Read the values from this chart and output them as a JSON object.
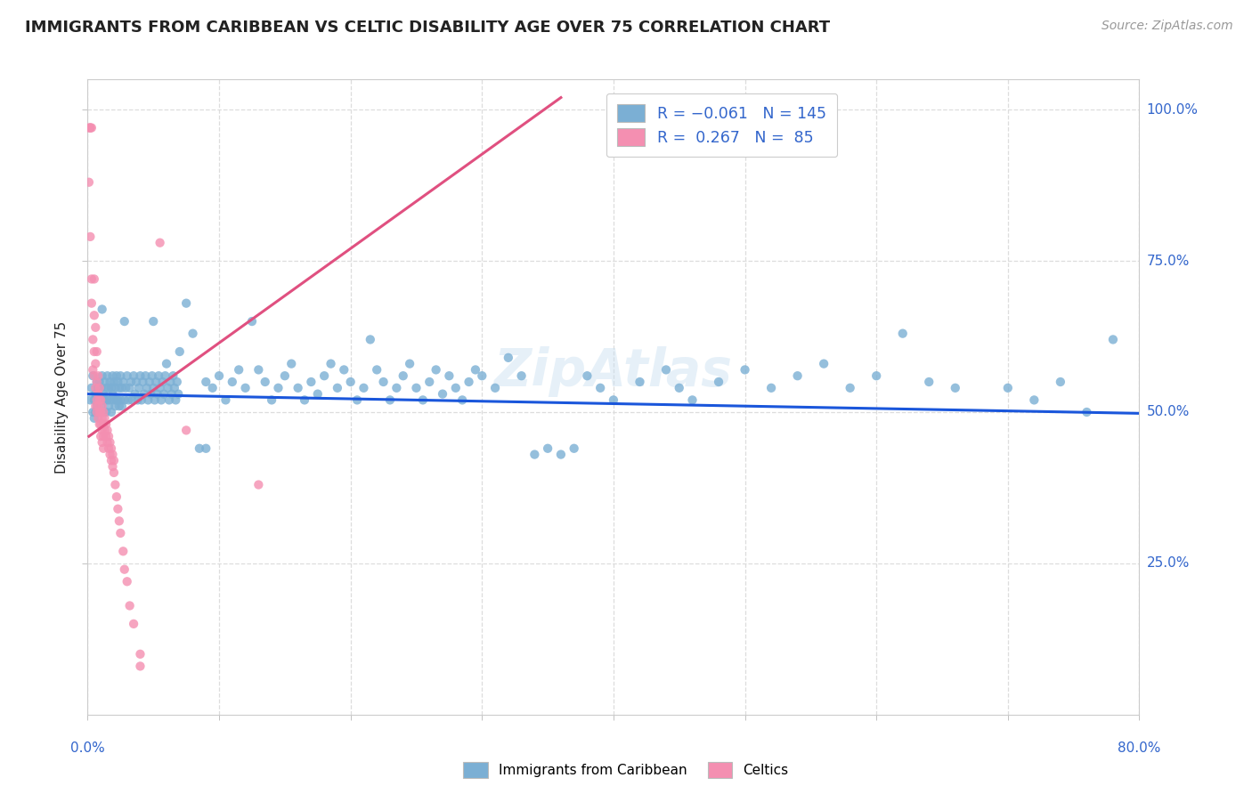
{
  "title": "IMMIGRANTS FROM CARIBBEAN VS CELTIC DISABILITY AGE OVER 75 CORRELATION CHART",
  "source": "Source: ZipAtlas.com",
  "ylabel": "Disability Age Over 75",
  "ytick_labels": [
    "25.0%",
    "50.0%",
    "75.0%",
    "100.0%"
  ],
  "ytick_positions": [
    0.25,
    0.5,
    0.75,
    1.0
  ],
  "xmin": 0.0,
  "xmax": 0.8,
  "ymin": 0.0,
  "ymax": 1.05,
  "blue_color": "#7bafd4",
  "pink_color": "#f48fb1",
  "blue_line_color": "#1a56db",
  "pink_line_color": "#e05080",
  "background_color": "#ffffff",
  "title_color": "#222222",
  "grid_color": "#dddddd",
  "right_label_color": "#3366cc",
  "blue_scatter": [
    [
      0.002,
      0.52
    ],
    [
      0.003,
      0.54
    ],
    [
      0.004,
      0.5
    ],
    [
      0.004,
      0.56
    ],
    [
      0.005,
      0.52
    ],
    [
      0.005,
      0.49
    ],
    [
      0.006,
      0.53
    ],
    [
      0.006,
      0.5
    ],
    [
      0.007,
      0.55
    ],
    [
      0.007,
      0.51
    ],
    [
      0.008,
      0.54
    ],
    [
      0.008,
      0.5
    ],
    [
      0.009,
      0.52
    ],
    [
      0.009,
      0.55
    ],
    [
      0.01,
      0.51
    ],
    [
      0.01,
      0.54
    ],
    [
      0.011,
      0.52
    ],
    [
      0.011,
      0.56
    ],
    [
      0.012,
      0.53
    ],
    [
      0.012,
      0.5
    ],
    [
      0.013,
      0.55
    ],
    [
      0.013,
      0.52
    ],
    [
      0.014,
      0.54
    ],
    [
      0.014,
      0.5
    ],
    [
      0.015,
      0.56
    ],
    [
      0.015,
      0.52
    ],
    [
      0.016,
      0.54
    ],
    [
      0.016,
      0.51
    ],
    [
      0.017,
      0.55
    ],
    [
      0.017,
      0.52
    ],
    [
      0.018,
      0.54
    ],
    [
      0.018,
      0.5
    ],
    [
      0.019,
      0.53
    ],
    [
      0.019,
      0.56
    ],
    [
      0.02,
      0.52
    ],
    [
      0.02,
      0.55
    ],
    [
      0.021,
      0.54
    ],
    [
      0.021,
      0.51
    ],
    [
      0.022,
      0.56
    ],
    [
      0.022,
      0.52
    ],
    [
      0.023,
      0.55
    ],
    [
      0.023,
      0.52
    ],
    [
      0.024,
      0.54
    ],
    [
      0.024,
      0.51
    ],
    [
      0.025,
      0.56
    ],
    [
      0.025,
      0.52
    ],
    [
      0.026,
      0.54
    ],
    [
      0.026,
      0.51
    ],
    [
      0.027,
      0.55
    ],
    [
      0.028,
      0.52
    ],
    [
      0.029,
      0.54
    ],
    [
      0.03,
      0.56
    ],
    [
      0.031,
      0.52
    ],
    [
      0.032,
      0.54
    ],
    [
      0.033,
      0.55
    ],
    [
      0.034,
      0.52
    ],
    [
      0.035,
      0.56
    ],
    [
      0.036,
      0.53
    ],
    [
      0.037,
      0.55
    ],
    [
      0.038,
      0.52
    ],
    [
      0.039,
      0.54
    ],
    [
      0.04,
      0.56
    ],
    [
      0.041,
      0.52
    ],
    [
      0.042,
      0.55
    ],
    [
      0.043,
      0.53
    ],
    [
      0.044,
      0.56
    ],
    [
      0.045,
      0.54
    ],
    [
      0.046,
      0.52
    ],
    [
      0.047,
      0.55
    ],
    [
      0.048,
      0.53
    ],
    [
      0.049,
      0.56
    ],
    [
      0.05,
      0.54
    ],
    [
      0.051,
      0.52
    ],
    [
      0.052,
      0.55
    ],
    [
      0.053,
      0.53
    ],
    [
      0.054,
      0.56
    ],
    [
      0.055,
      0.54
    ],
    [
      0.056,
      0.52
    ],
    [
      0.057,
      0.55
    ],
    [
      0.058,
      0.53
    ],
    [
      0.059,
      0.56
    ],
    [
      0.06,
      0.58
    ],
    [
      0.061,
      0.54
    ],
    [
      0.062,
      0.52
    ],
    [
      0.063,
      0.55
    ],
    [
      0.064,
      0.53
    ],
    [
      0.065,
      0.56
    ],
    [
      0.066,
      0.54
    ],
    [
      0.067,
      0.52
    ],
    [
      0.068,
      0.55
    ],
    [
      0.069,
      0.53
    ],
    [
      0.011,
      0.67
    ],
    [
      0.028,
      0.65
    ],
    [
      0.05,
      0.65
    ],
    [
      0.07,
      0.6
    ],
    [
      0.075,
      0.68
    ],
    [
      0.08,
      0.63
    ],
    [
      0.085,
      0.44
    ],
    [
      0.09,
      0.44
    ],
    [
      0.09,
      0.55
    ],
    [
      0.095,
      0.54
    ],
    [
      0.1,
      0.56
    ],
    [
      0.105,
      0.52
    ],
    [
      0.11,
      0.55
    ],
    [
      0.115,
      0.57
    ],
    [
      0.12,
      0.54
    ],
    [
      0.125,
      0.65
    ],
    [
      0.13,
      0.57
    ],
    [
      0.135,
      0.55
    ],
    [
      0.14,
      0.52
    ],
    [
      0.145,
      0.54
    ],
    [
      0.15,
      0.56
    ],
    [
      0.155,
      0.58
    ],
    [
      0.16,
      0.54
    ],
    [
      0.165,
      0.52
    ],
    [
      0.17,
      0.55
    ],
    [
      0.175,
      0.53
    ],
    [
      0.18,
      0.56
    ],
    [
      0.185,
      0.58
    ],
    [
      0.19,
      0.54
    ],
    [
      0.195,
      0.57
    ],
    [
      0.2,
      0.55
    ],
    [
      0.205,
      0.52
    ],
    [
      0.21,
      0.54
    ],
    [
      0.215,
      0.62
    ],
    [
      0.22,
      0.57
    ],
    [
      0.225,
      0.55
    ],
    [
      0.23,
      0.52
    ],
    [
      0.235,
      0.54
    ],
    [
      0.24,
      0.56
    ],
    [
      0.245,
      0.58
    ],
    [
      0.25,
      0.54
    ],
    [
      0.255,
      0.52
    ],
    [
      0.26,
      0.55
    ],
    [
      0.265,
      0.57
    ],
    [
      0.27,
      0.53
    ],
    [
      0.275,
      0.56
    ],
    [
      0.28,
      0.54
    ],
    [
      0.285,
      0.52
    ],
    [
      0.29,
      0.55
    ],
    [
      0.295,
      0.57
    ],
    [
      0.3,
      0.56
    ],
    [
      0.31,
      0.54
    ],
    [
      0.32,
      0.59
    ],
    [
      0.33,
      0.56
    ],
    [
      0.34,
      0.43
    ],
    [
      0.35,
      0.44
    ],
    [
      0.36,
      0.43
    ],
    [
      0.37,
      0.44
    ],
    [
      0.38,
      0.56
    ],
    [
      0.39,
      0.54
    ],
    [
      0.4,
      0.52
    ],
    [
      0.42,
      0.55
    ],
    [
      0.44,
      0.57
    ],
    [
      0.45,
      0.54
    ],
    [
      0.46,
      0.52
    ],
    [
      0.48,
      0.55
    ],
    [
      0.5,
      0.57
    ],
    [
      0.52,
      0.54
    ],
    [
      0.54,
      0.56
    ],
    [
      0.56,
      0.58
    ],
    [
      0.58,
      0.54
    ],
    [
      0.6,
      0.56
    ],
    [
      0.62,
      0.63
    ],
    [
      0.64,
      0.55
    ],
    [
      0.66,
      0.54
    ],
    [
      0.7,
      0.54
    ],
    [
      0.72,
      0.52
    ],
    [
      0.74,
      0.55
    ],
    [
      0.76,
      0.5
    ],
    [
      0.78,
      0.62
    ]
  ],
  "pink_scatter": [
    [
      0.001,
      0.97
    ],
    [
      0.002,
      0.97
    ],
    [
      0.002,
      0.97
    ],
    [
      0.003,
      0.97
    ],
    [
      0.001,
      0.88
    ],
    [
      0.002,
      0.79
    ],
    [
      0.003,
      0.72
    ],
    [
      0.003,
      0.68
    ],
    [
      0.004,
      0.62
    ],
    [
      0.004,
      0.57
    ],
    [
      0.005,
      0.72
    ],
    [
      0.005,
      0.66
    ],
    [
      0.005,
      0.6
    ],
    [
      0.005,
      0.56
    ],
    [
      0.006,
      0.64
    ],
    [
      0.006,
      0.58
    ],
    [
      0.006,
      0.54
    ],
    [
      0.006,
      0.51
    ],
    [
      0.007,
      0.6
    ],
    [
      0.007,
      0.55
    ],
    [
      0.007,
      0.52
    ],
    [
      0.007,
      0.5
    ],
    [
      0.008,
      0.56
    ],
    [
      0.008,
      0.53
    ],
    [
      0.008,
      0.51
    ],
    [
      0.008,
      0.49
    ],
    [
      0.009,
      0.54
    ],
    [
      0.009,
      0.52
    ],
    [
      0.009,
      0.5
    ],
    [
      0.009,
      0.48
    ],
    [
      0.01,
      0.52
    ],
    [
      0.01,
      0.5
    ],
    [
      0.01,
      0.48
    ],
    [
      0.01,
      0.46
    ],
    [
      0.011,
      0.51
    ],
    [
      0.011,
      0.49
    ],
    [
      0.011,
      0.47
    ],
    [
      0.011,
      0.45
    ],
    [
      0.012,
      0.5
    ],
    [
      0.012,
      0.48
    ],
    [
      0.012,
      0.46
    ],
    [
      0.012,
      0.44
    ],
    [
      0.013,
      0.49
    ],
    [
      0.013,
      0.47
    ],
    [
      0.014,
      0.48
    ],
    [
      0.014,
      0.46
    ],
    [
      0.015,
      0.47
    ],
    [
      0.015,
      0.45
    ],
    [
      0.016,
      0.46
    ],
    [
      0.016,
      0.44
    ],
    [
      0.017,
      0.45
    ],
    [
      0.017,
      0.43
    ],
    [
      0.018,
      0.44
    ],
    [
      0.018,
      0.42
    ],
    [
      0.019,
      0.43
    ],
    [
      0.019,
      0.41
    ],
    [
      0.02,
      0.42
    ],
    [
      0.02,
      0.4
    ],
    [
      0.021,
      0.38
    ],
    [
      0.022,
      0.36
    ],
    [
      0.023,
      0.34
    ],
    [
      0.024,
      0.32
    ],
    [
      0.025,
      0.3
    ],
    [
      0.027,
      0.27
    ],
    [
      0.028,
      0.24
    ],
    [
      0.03,
      0.22
    ],
    [
      0.032,
      0.18
    ],
    [
      0.035,
      0.15
    ],
    [
      0.04,
      0.1
    ],
    [
      0.04,
      0.08
    ],
    [
      0.055,
      0.78
    ],
    [
      0.075,
      0.47
    ],
    [
      0.13,
      0.38
    ]
  ],
  "blue_line": [
    [
      0.0,
      0.53
    ],
    [
      0.8,
      0.498
    ]
  ],
  "pink_line": [
    [
      0.001,
      0.46
    ],
    [
      0.36,
      1.02
    ]
  ]
}
